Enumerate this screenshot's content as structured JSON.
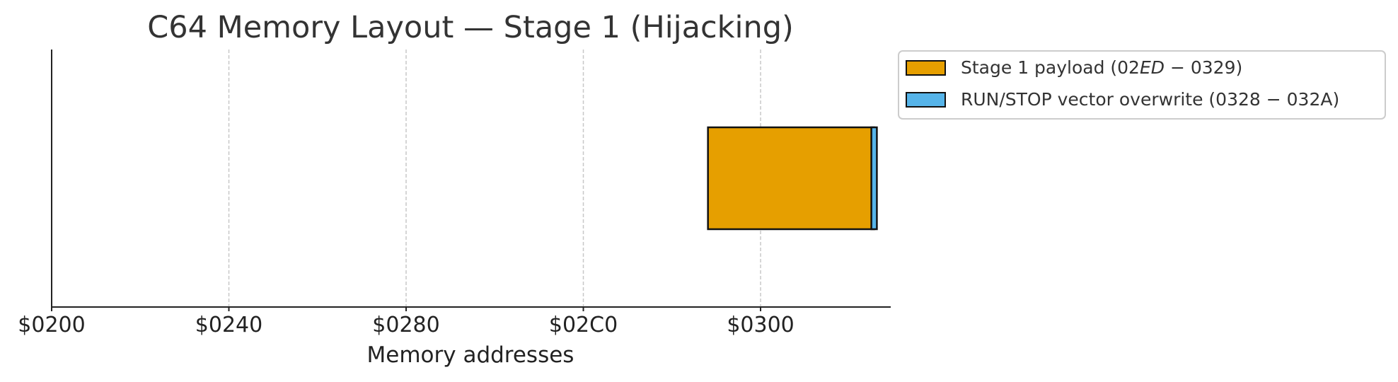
{
  "chart_data": {
    "type": "bar",
    "orientation": "horizontal",
    "title": "C64 Memory Layout — Stage 1 (Hijacking)",
    "xlabel": "Memory addresses",
    "ylabel": "",
    "xlim": [
      512,
      815
    ],
    "x_ticks": [
      {
        "value": 512,
        "label": "$0200"
      },
      {
        "value": 576,
        "label": "$0240"
      },
      {
        "value": 640,
        "label": "$0280"
      },
      {
        "value": 704,
        "label": "$02C0"
      },
      {
        "value": 768,
        "label": "$0300"
      }
    ],
    "grid": {
      "x": true,
      "y": false,
      "style": "dashed"
    },
    "legend": {
      "placement": "outside top-right",
      "entries": [
        {
          "pre": "Stage 1 payload (02",
          "it": "ED",
          "post": " − 0329)",
          "color": "#E69F00"
        },
        {
          "pre": "RUN/STOP vector overwrite (0328 − 032A)",
          "it": "",
          "post": "",
          "color": "#56B4E9"
        }
      ]
    },
    "series": [
      {
        "name": "Stage 1 payload",
        "start": 749,
        "end": 809,
        "color": "#E69F00"
      },
      {
        "name": "RUN/STOP vector overwrite",
        "start": 808,
        "end": 810,
        "color": "#56B4E9"
      }
    ]
  }
}
